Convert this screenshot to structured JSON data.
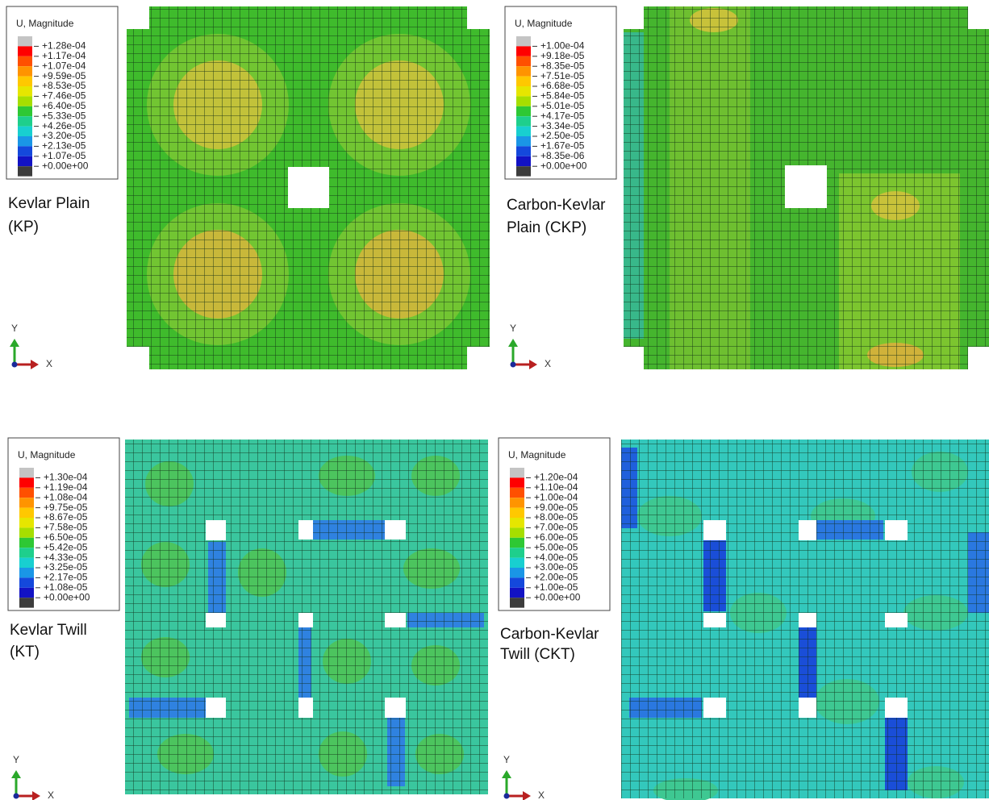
{
  "panels": [
    {
      "legend": {
        "title": "U, Magnitude",
        "labels": [
          "+1.28e-04",
          "+1.17e-04",
          "+1.07e-04",
          "+9.59e-05",
          "+8.53e-05",
          "+7.46e-05",
          "+6.40e-05",
          "+5.33e-05",
          "+4.26e-05",
          "+3.20e-05",
          "+2.13e-05",
          "+1.07e-05",
          "+0.00e+00"
        ]
      },
      "name": [
        "Kevlar Plain",
        "(KP)"
      ],
      "axes": {
        "y": "Y",
        "x": "X"
      }
    },
    {
      "legend": {
        "title": "U, Magnitude",
        "labels": [
          "+1.00e-04",
          "+9.18e-05",
          "+8.35e-05",
          "+7.51e-05",
          "+6.68e-05",
          "+5.84e-05",
          "+5.01e-05",
          "+4.17e-05",
          "+3.34e-05",
          "+2.50e-05",
          "+1.67e-05",
          "+8.35e-06",
          "+0.00e+00"
        ]
      },
      "name": [
        "Carbon-Kevlar",
        "Plain (CKP)"
      ],
      "axes": {
        "y": "Y",
        "x": "X"
      }
    },
    {
      "legend": {
        "title": "U, Magnitude",
        "labels": [
          "+1.30e-04",
          "+1.19e-04",
          "+1.08e-04",
          "+9.75e-05",
          "+8.67e-05",
          "+7.58e-05",
          "+6.50e-05",
          "+5.42e-05",
          "+4.33e-05",
          "+3.25e-05",
          "+2.17e-05",
          "+1.08e-05",
          "+0.00e+00"
        ]
      },
      "name": [
        "Kevlar Twill",
        "(KT)"
      ],
      "axes": {
        "y": "Y",
        "x": "X"
      }
    },
    {
      "legend": {
        "title": "U, Magnitude",
        "labels": [
          "+1.20e-04",
          "+1.10e-04",
          "+1.00e-04",
          "+9.00e-05",
          "+8.00e-05",
          "+7.00e-05",
          "+6.00e-05",
          "+5.00e-05",
          "+4.00e-05",
          "+3.00e-05",
          "+2.00e-05",
          "+1.00e-05",
          "+0.00e+00"
        ]
      },
      "name": [
        "Carbon-Kevlar",
        "Twill (CKT)"
      ],
      "axes": {
        "y": "Y",
        "x": "X"
      }
    }
  ]
}
